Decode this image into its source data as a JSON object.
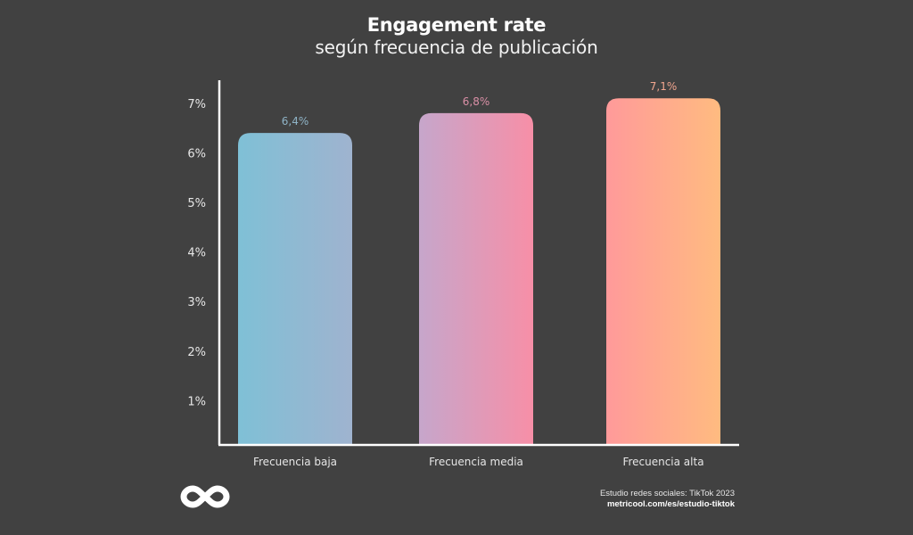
{
  "header": {
    "title": "Engagement rate",
    "subtitle": "según frecuencia de publicación"
  },
  "chart_data": {
    "type": "bar",
    "title": "Engagement rate",
    "subtitle": "según frecuencia de publicación",
    "xlabel": "",
    "ylabel": "",
    "categories": [
      "Frecuencia baja",
      "Frecuencia media",
      "Frecuencia alta"
    ],
    "values": [
      6.4,
      6.8,
      7.1
    ],
    "value_labels": [
      "6,4%",
      "6,8%",
      "7,1%"
    ],
    "ylim": [
      0,
      7.5
    ],
    "yticks": [
      1,
      2,
      3,
      4,
      5,
      6,
      7
    ],
    "ytick_labels": [
      "1%",
      "2%",
      "3%",
      "4%",
      "5%",
      "6%",
      "7%"
    ],
    "grid": false,
    "legend": "none",
    "bar_gradients": [
      [
        "#7fc0d6",
        "#9fb3cf"
      ],
      [
        "#c6a6cb",
        "#f78fa7"
      ],
      [
        "#ff9a9a",
        "#ffbb80"
      ]
    ],
    "value_label_colors": [
      "#8fb3c6",
      "#d98fa6",
      "#f0a58e"
    ]
  },
  "footer": {
    "logo": "metricool-infinity-logo",
    "source_line": "Estudio redes sociales: TikTok 2023",
    "source_url": "metricool.com/es/estudio-tiktok"
  },
  "colors": {
    "background": "#414141",
    "axis": "#ffffff",
    "text": "#e6e6e6"
  }
}
